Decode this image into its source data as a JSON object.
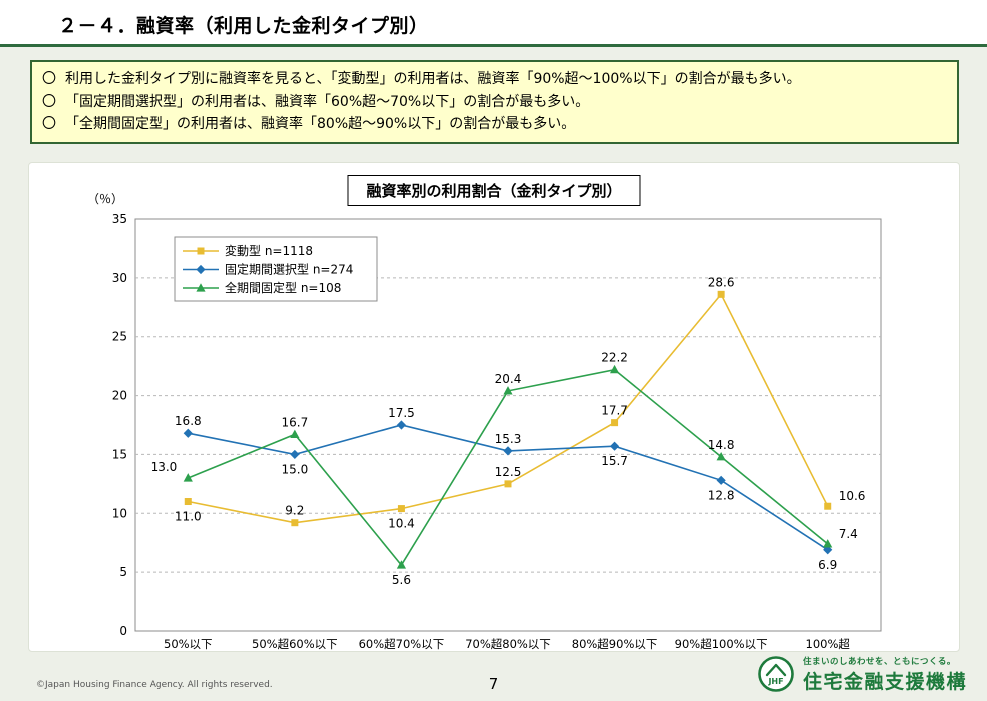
{
  "page": {
    "title": "２－４．融資率（利用した金利タイプ別）",
    "page_number": "7",
    "copyright": "©Japan Housing Finance Agency. All rights reserved."
  },
  "callout": {
    "bullet": "〇",
    "lines": [
      "利用した金利タイプ別に融資率を見ると、「変動型」の利用者は、融資率「90%超～100%以下」の割合が最も多い。",
      "「固定期間選択型」の利用者は、融資率「60%超～70%以下」の割合が最も多い。",
      "「全期間固定型」の利用者は、融資率「80%超～90%以下」の割合が最も多い。"
    ]
  },
  "logo": {
    "tagline": "住まいのしあわせを、ともにつくる。",
    "org_name": "住宅金融支援機構"
  },
  "chart_data": {
    "type": "line",
    "title": "融資率別の利用割合（金利タイプ別）",
    "y_axis_label": "（％）",
    "ylim": [
      0,
      35
    ],
    "ytick_step": 5,
    "grid": true,
    "legend_position": "top-left-inside",
    "categories": [
      "50%以下",
      "50%超60%以下",
      "60%超70%以下",
      "70%超80%以下",
      "80%超90%以下",
      "90%超100%以下",
      "100%超"
    ],
    "series": [
      {
        "name": "変動型  n=1118",
        "color": "#E8BC32",
        "marker": "square",
        "values": [
          11.0,
          9.2,
          10.4,
          12.5,
          17.7,
          28.6,
          10.6
        ],
        "label_positions": [
          "below",
          "above",
          "below",
          "above",
          "above",
          "above",
          "above-right"
        ]
      },
      {
        "name": "固定期間選択型  n=274",
        "color": "#2272B4",
        "marker": "diamond",
        "values": [
          16.8,
          15.0,
          17.5,
          15.3,
          15.7,
          12.8,
          6.9
        ],
        "label_positions": [
          "above",
          "below",
          "above",
          "above",
          "below",
          "below",
          "below"
        ]
      },
      {
        "name": "全期間固定型  n=108",
        "color": "#2DA04D",
        "marker": "triangle",
        "values": [
          13.0,
          16.7,
          5.6,
          20.4,
          22.2,
          14.8,
          7.4
        ],
        "label_positions": [
          "left",
          "above",
          "below",
          "above",
          "above",
          "above",
          "above-right"
        ]
      }
    ]
  }
}
